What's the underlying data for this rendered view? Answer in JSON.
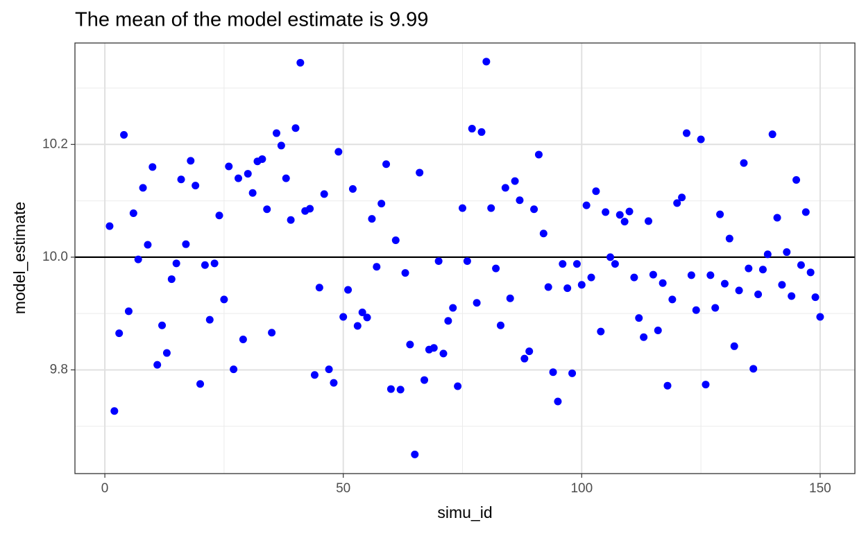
{
  "chart_data": {
    "type": "scatter",
    "title": "The mean of the model estimate is  9.99",
    "x_label": "simu_id",
    "y_label": "model_estimate",
    "color": "blue",
    "grid": true,
    "hline": 10,
    "xlim": [
      -6.27,
      157.29
    ],
    "xticks": [
      0,
      50,
      100,
      150
    ],
    "x_minor_ticks": [
      25,
      75,
      125
    ],
    "ylim": [
      9.616,
      10.38
    ],
    "yticks": [
      9.8,
      {
        "value": 10,
        "label": "10.0"
      },
      10.2
    ],
    "y_minor_ticks": [
      9.7,
      9.9,
      10.1,
      10.3
    ],
    "x": [
      1,
      2,
      3,
      4,
      5,
      6,
      7,
      8,
      9,
      10,
      11,
      12,
      13,
      14,
      15,
      16,
      17,
      18,
      19,
      20,
      21,
      22,
      23,
      24,
      25,
      26,
      27,
      28,
      29,
      30,
      31,
      32,
      33,
      34,
      35,
      36,
      37,
      38,
      39,
      40,
      41,
      42,
      43,
      44,
      45,
      46,
      47,
      48,
      49,
      50,
      51,
      52,
      53,
      54,
      55,
      56,
      57,
      58,
      59,
      60,
      61,
      62,
      63,
      64,
      65,
      66,
      67,
      68,
      69,
      70,
      71,
      72,
      73,
      74,
      75,
      76,
      77,
      78,
      79,
      80,
      81,
      82,
      83,
      84,
      85,
      86,
      87,
      88,
      89,
      90,
      91,
      92,
      93,
      94,
      95,
      96,
      97,
      98,
      99,
      100,
      101,
      102,
      103,
      104,
      105,
      106,
      107,
      108,
      109,
      110,
      111,
      112,
      113,
      114,
      115,
      116,
      117,
      118,
      119,
      120,
      121,
      122,
      123,
      124,
      125,
      126,
      127,
      128,
      129,
      130,
      131,
      132,
      133,
      134,
      135,
      136,
      137,
      138,
      139,
      140,
      141,
      142,
      143,
      144,
      145,
      146,
      147,
      148,
      149,
      150
    ],
    "values": [
      10.055,
      9.727,
      9.865,
      10.217,
      9.904,
      10.078,
      9.996,
      10.123,
      10.022,
      10.16,
      9.809,
      9.879,
      9.83,
      9.961,
      9.989,
      10.138,
      10.023,
      10.171,
      10.127,
      9.775,
      9.986,
      9.889,
      9.989,
      10.074,
      9.925,
      10.161,
      9.801,
      10.14,
      9.854,
      10.148,
      10.114,
      10.17,
      10.174,
      10.085,
      9.866,
      10.22,
      10.198,
      10.14,
      10.066,
      10.229,
      10.345,
      10.082,
      10.086,
      9.791,
      9.946,
      10.112,
      9.801,
      9.777,
      10.187,
      9.894,
      9.942,
      10.121,
      9.878,
      9.902,
      9.893,
      10.068,
      9.983,
      10.095,
      10.165,
      9.766,
      10.03,
      9.765,
      9.972,
      9.845,
      9.65,
      10.15,
      9.782,
      9.836,
      9.839,
      9.993,
      9.829,
      9.887,
      9.91,
      9.771,
      10.087,
      9.993,
      10.228,
      9.919,
      10.222,
      10.347,
      10.087,
      9.98,
      9.879,
      10.123,
      9.927,
      10.135,
      10.101,
      9.82,
      9.833,
      10.085,
      10.182,
      10.042,
      9.947,
      9.796,
      9.744,
      9.988,
      9.945,
      9.794,
      9.988,
      9.951,
      10.092,
      9.964,
      10.117,
      9.868,
      10.08,
      10.0,
      9.988,
      10.075,
      10.063,
      10.081,
      9.964,
      9.892,
      9.858,
      10.064,
      9.969,
      9.87,
      9.954,
      9.772,
      9.925,
      10.096,
      10.106,
      10.22,
      9.968,
      9.906,
      10.209,
      9.774,
      9.968,
      9.91,
      10.076,
      9.953,
      10.033,
      9.842,
      9.941,
      10.167,
      9.98,
      9.802,
      9.934,
      9.978,
      10.005,
      10.218,
      10.07,
      9.951,
      10.009,
      9.931,
      10.137,
      9.986,
      10.08,
      9.973,
      9.929,
      9.894
    ]
  }
}
